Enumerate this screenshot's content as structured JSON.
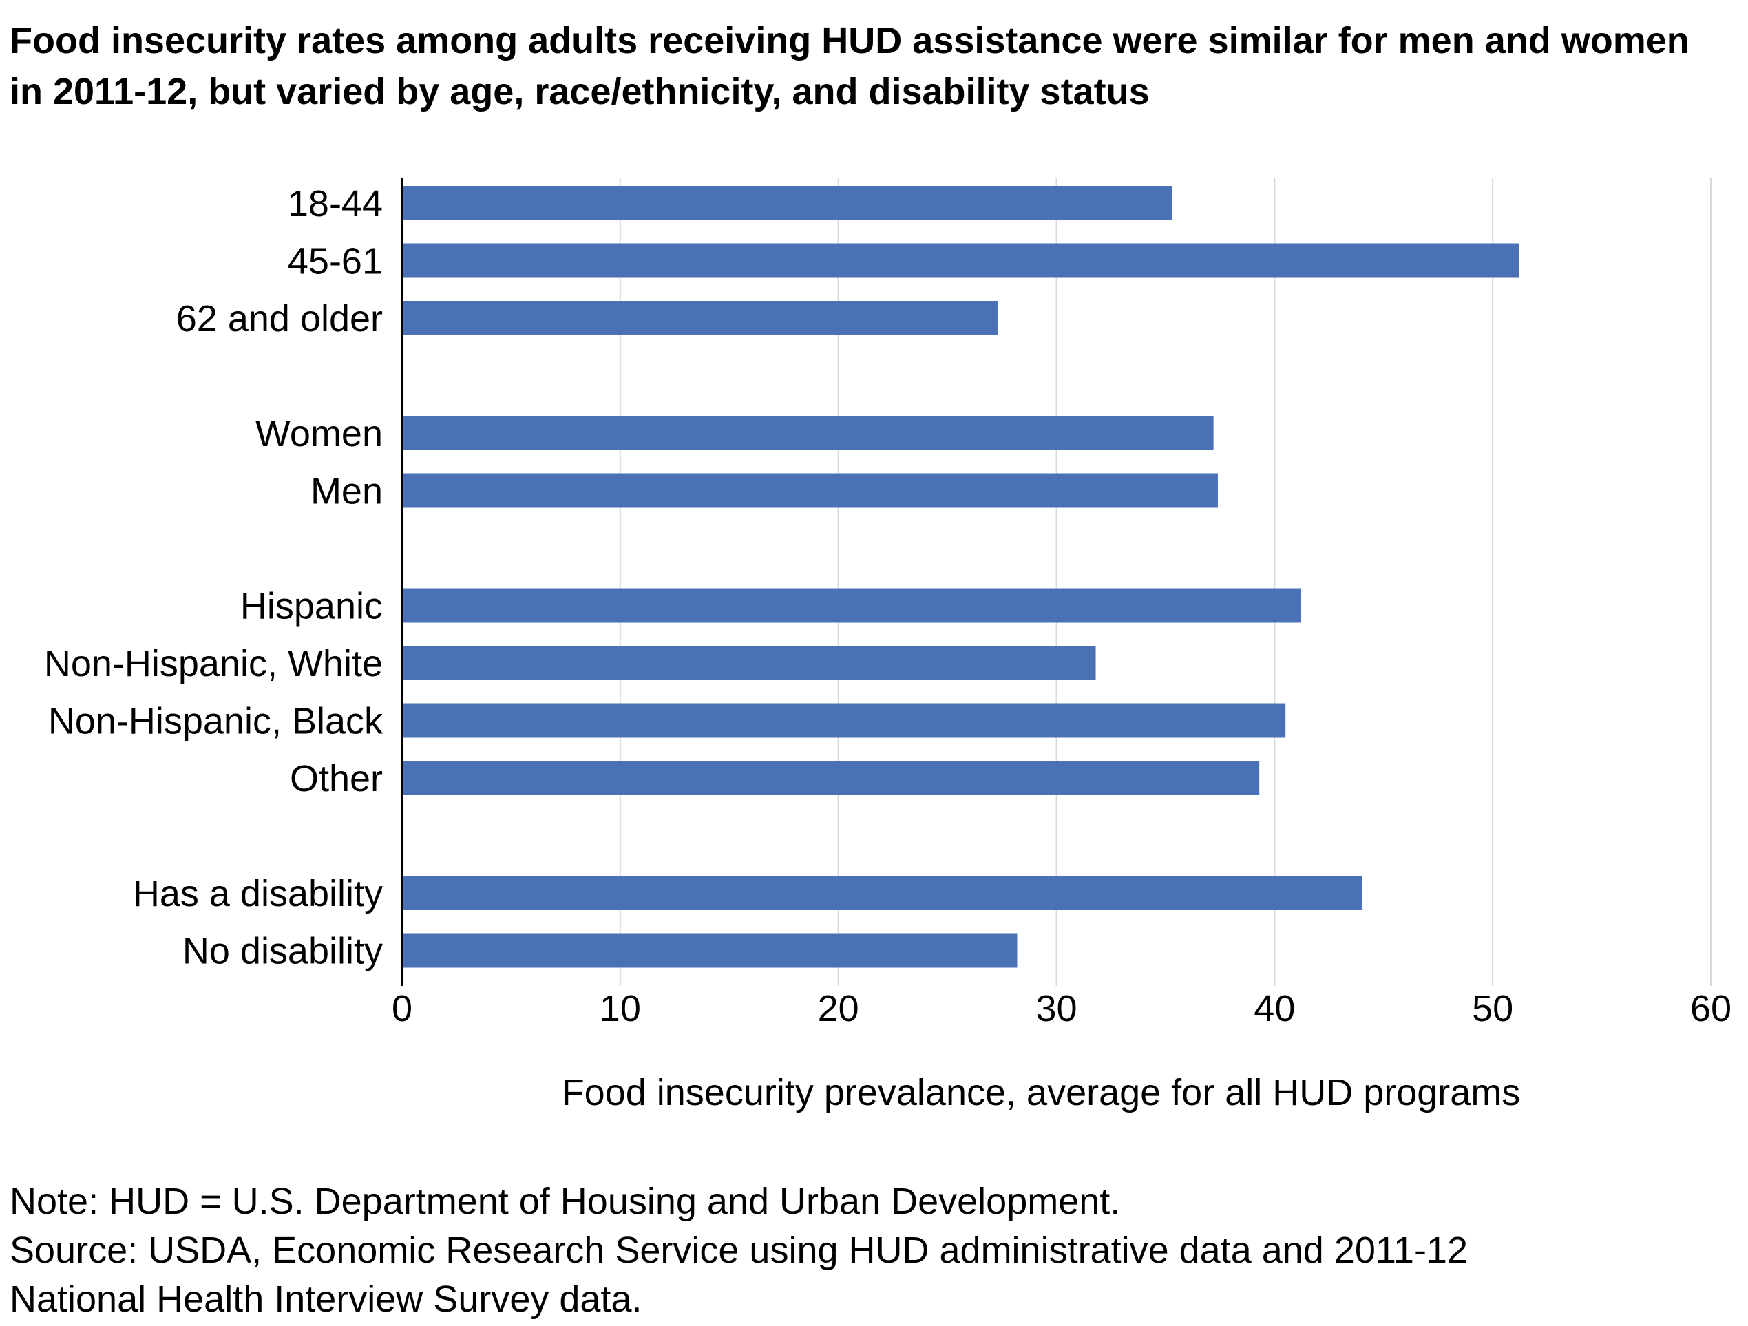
{
  "chart_data": {
    "type": "bar",
    "orientation": "horizontal",
    "title": "Food insecurity rates among adults receiving HUD assistance were similar for men and women in 2011-12, but varied by age, race/ethnicity, and disability status",
    "xlabel": "Food insecurity prevalance, average for all HUD programs",
    "ylabel": "",
    "xlim": [
      0,
      60
    ],
    "xticks": [
      "0",
      "10",
      "20",
      "30",
      "40",
      "50",
      "60"
    ],
    "grid": "vertical",
    "legend": "none",
    "groups": [
      {
        "categories": [
          "18-44",
          "45-61",
          "62 and older"
        ],
        "values": [
          35.3,
          51.2,
          27.3
        ]
      },
      {
        "categories": [
          "Women",
          "Men"
        ],
        "values": [
          37.2,
          37.4
        ]
      },
      {
        "categories": [
          "Hispanic",
          "Non-Hispanic, White",
          "Non-Hispanic, Black",
          "Other"
        ],
        "values": [
          41.2,
          31.8,
          40.5,
          39.3
        ]
      },
      {
        "categories": [
          "Has a disability",
          "No disability"
        ],
        "values": [
          44.0,
          28.2
        ]
      }
    ],
    "colors": {
      "bar": "#4a70b6",
      "grid": "#d9d9d9",
      "axis": "#000000"
    }
  },
  "notes": {
    "note": "Note: HUD = U.S. Department of Housing and Urban Development.",
    "source_line1": "Source: USDA, Economic Research Service using HUD administrative data and 2011-12",
    "source_line2": "National Health Interview Survey data."
  }
}
